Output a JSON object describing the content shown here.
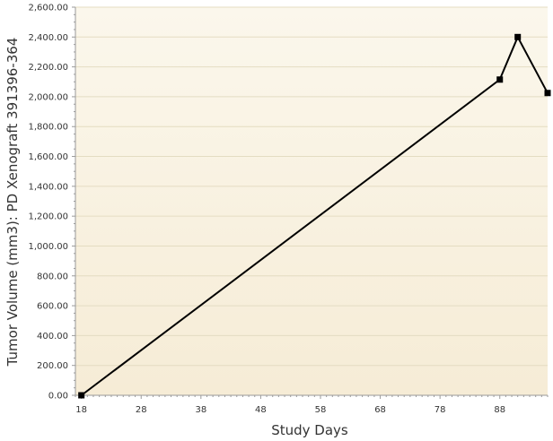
{
  "chart_data": {
    "type": "line",
    "title": "",
    "xlabel": "Study Days",
    "ylabel": "Tumor Volume (mm3): PD Xenograft 391396-364",
    "xlim": [
      17,
      96
    ],
    "ylim": [
      0,
      2600
    ],
    "x_ticks": [
      18,
      28,
      38,
      48,
      58,
      68,
      78,
      88
    ],
    "x_tick_labels": [
      "18",
      "28",
      "38",
      "48",
      "58",
      "68",
      "78",
      "88"
    ],
    "y_ticks": [
      0,
      200,
      400,
      600,
      800,
      1000,
      1200,
      1400,
      1600,
      1800,
      2000,
      2200,
      2400,
      2600
    ],
    "y_tick_labels": [
      "0.00",
      "200.00",
      "400.00",
      "600.00",
      "800.00",
      "1,000.00",
      "1,200.00",
      "1,400.00",
      "1,600.00",
      "1,800.00",
      "2,000.00",
      "2,200.00",
      "2,400.00",
      "2,600.00"
    ],
    "grid": true,
    "legend": false,
    "series": [
      {
        "x": [
          18,
          88,
          91,
          96
        ],
        "y": [
          0,
          2115,
          2400,
          2025
        ],
        "color": "#000000",
        "marker": "square"
      }
    ],
    "colors": {
      "plot_bg_top": "#fbf7ec",
      "plot_bg_bottom": "#f6ecd6",
      "grid": "#e4dcc2",
      "axis": "#9a9a9a"
    }
  }
}
